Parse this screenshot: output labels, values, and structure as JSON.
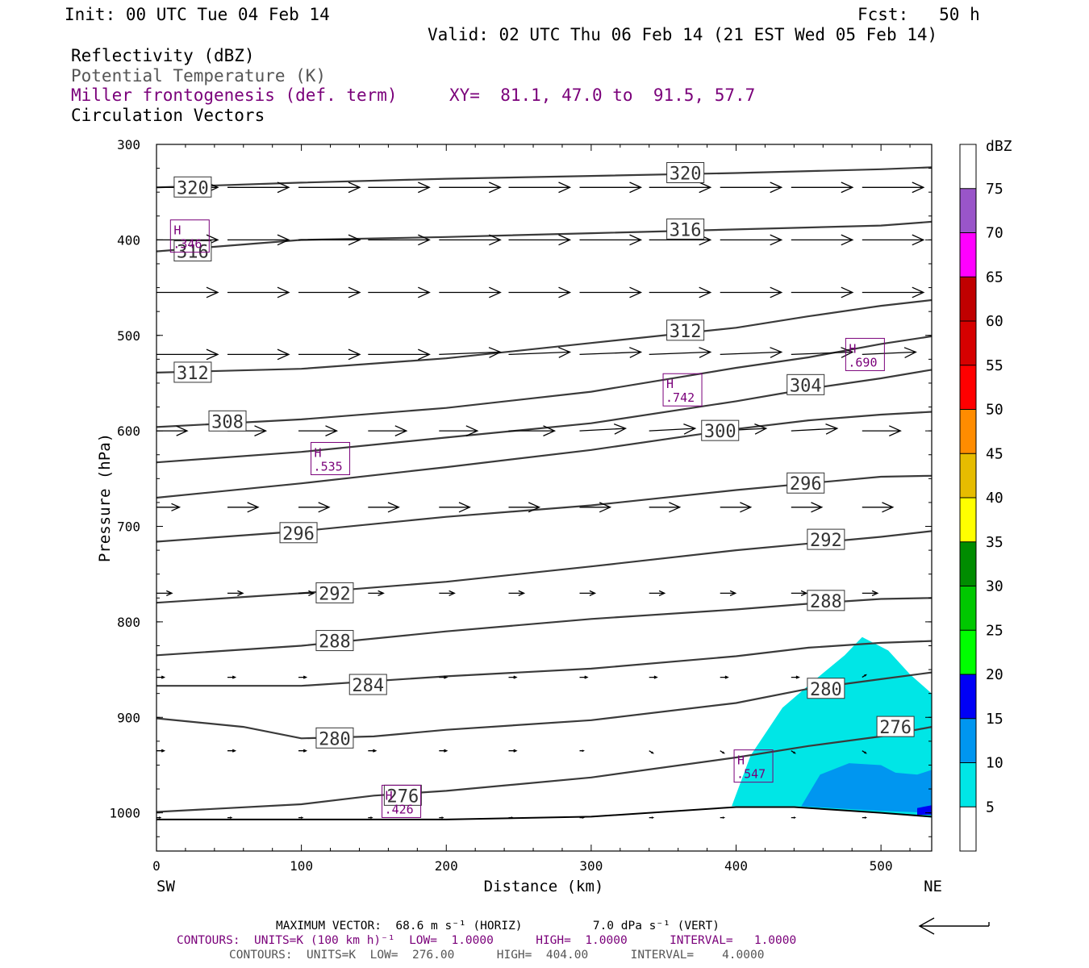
{
  "header": {
    "init": "Init: 00 UTC Tue 04 Feb 14",
    "fcst": "Fcst:   50 h",
    "valid": "Valid: 02 UTC Thu 06 Feb 14 (21 EST Wed 05 Feb 14)",
    "field1": "Reflectivity (dBZ)",
    "field2": "Potential Temperature (K)",
    "field3": "Miller frontogenesis (def. term)",
    "xy": "XY=  81.1, 47.0 to  91.5, 57.7",
    "field4": "Circulation Vectors"
  },
  "footer": {
    "max_vector": "MAXIMUM VECTOR:  68.6 m s⁻¹ (HORIZ)          7.0 dPa s⁻¹ (VERT)",
    "contours_front": "CONTOURS:  UNITS=K (100 km h)⁻¹  LOW=  1.0000      HIGH=  1.0000      INTERVAL=   1.0000",
    "contours_theta": "CONTOURS:  UNITS=K  LOW=  276.00      HIGH=  404.00      INTERVAL=    4.0000"
  },
  "colors": {
    "theta": "#3a3a3a",
    "frontogenesis": "#7a007a",
    "dbz5": "#00e6e6",
    "dbz10": "#0096f0",
    "dbz15": "#0000f6"
  },
  "chart_data": {
    "type": "cross-section",
    "xlabel": "Distance (km)",
    "ylabel": "Pressure (hPa)",
    "x_ticks": [
      "0",
      "100",
      "200",
      "300",
      "400",
      "500"
    ],
    "y_ticks": [
      "300",
      "400",
      "500",
      "600",
      "700",
      "800",
      "900",
      "1000"
    ],
    "xlim": [
      0,
      535
    ],
    "ylim": [
      1040,
      300
    ],
    "left_end": "SW",
    "right_end": "NE",
    "theta_contours": [
      {
        "label": "320",
        "points": [
          [
            0,
            345
          ],
          [
            100,
            340
          ],
          [
            200,
            336
          ],
          [
            300,
            333
          ],
          [
            400,
            330
          ],
          [
            500,
            326
          ],
          [
            535,
            324
          ]
        ]
      },
      {
        "label": "316",
        "points": [
          [
            0,
            412
          ],
          [
            100,
            400
          ],
          [
            200,
            397
          ],
          [
            300,
            393
          ],
          [
            400,
            389
          ],
          [
            500,
            385
          ],
          [
            535,
            381
          ]
        ]
      },
      {
        "label": "312",
        "points": [
          [
            0,
            539
          ],
          [
            100,
            535
          ],
          [
            200,
            524
          ],
          [
            300,
            508
          ],
          [
            400,
            492
          ],
          [
            450,
            480
          ],
          [
            500,
            469
          ],
          [
            535,
            463
          ]
        ]
      },
      {
        "label": "308",
        "points": [
          [
            0,
            596
          ],
          [
            100,
            588
          ],
          [
            200,
            576
          ],
          [
            300,
            559
          ],
          [
            400,
            534
          ],
          [
            450,
            523
          ],
          [
            500,
            509
          ],
          [
            535,
            501
          ]
        ]
      },
      {
        "label": "304",
        "points": [
          [
            0,
            633
          ],
          [
            100,
            622
          ],
          [
            200,
            607
          ],
          [
            300,
            592
          ],
          [
            400,
            569
          ],
          [
            450,
            556
          ],
          [
            500,
            545
          ],
          [
            535,
            536
          ]
        ]
      },
      {
        "label": "300",
        "points": [
          [
            0,
            670
          ],
          [
            100,
            655
          ],
          [
            200,
            638
          ],
          [
            300,
            620
          ],
          [
            400,
            598
          ],
          [
            450,
            589
          ],
          [
            500,
            583
          ],
          [
            535,
            580
          ]
        ]
      },
      {
        "label": "296",
        "points": [
          [
            0,
            716
          ],
          [
            100,
            705
          ],
          [
            200,
            690
          ],
          [
            300,
            678
          ],
          [
            400,
            662
          ],
          [
            450,
            655
          ],
          [
            500,
            648
          ],
          [
            535,
            647
          ]
        ]
      },
      {
        "label": "292",
        "points": [
          [
            0,
            780
          ],
          [
            100,
            770
          ],
          [
            200,
            758
          ],
          [
            300,
            742
          ],
          [
            400,
            725
          ],
          [
            450,
            718
          ],
          [
            500,
            711
          ],
          [
            535,
            705
          ]
        ]
      },
      {
        "label": "288",
        "points": [
          [
            0,
            835
          ],
          [
            100,
            825
          ],
          [
            200,
            810
          ],
          [
            300,
            797
          ],
          [
            400,
            787
          ],
          [
            450,
            781
          ],
          [
            500,
            776
          ],
          [
            535,
            775
          ]
        ]
      },
      {
        "label": "284",
        "points": [
          [
            0,
            867
          ],
          [
            100,
            867
          ],
          [
            200,
            857
          ],
          [
            300,
            849
          ],
          [
            400,
            836
          ],
          [
            450,
            827
          ],
          [
            500,
            822
          ],
          [
            535,
            820
          ]
        ]
      },
      {
        "label": "280",
        "points": [
          [
            0,
            901
          ],
          [
            60,
            910
          ],
          [
            100,
            922
          ],
          [
            150,
            920
          ],
          [
            200,
            913
          ],
          [
            300,
            903
          ],
          [
            400,
            885
          ],
          [
            450,
            870
          ],
          [
            500,
            860
          ],
          [
            535,
            853
          ]
        ]
      },
      {
        "label": "276",
        "points": [
          [
            0,
            999
          ],
          [
            100,
            991
          ],
          [
            150,
            982
          ],
          [
            200,
            977
          ],
          [
            300,
            963
          ],
          [
            400,
            942
          ],
          [
            450,
            930
          ],
          [
            500,
            920
          ],
          [
            535,
            910
          ]
        ]
      }
    ],
    "theta_labels": [
      {
        "text": "320",
        "x": 25,
        "p": 345
      },
      {
        "text": "320",
        "x": 365,
        "p": 330
      },
      {
        "text": "316",
        "x": 25,
        "p": 412
      },
      {
        "text": "316",
        "x": 365,
        "p": 389
      },
      {
        "text": "312",
        "x": 25,
        "p": 539
      },
      {
        "text": "312",
        "x": 365,
        "p": 495
      },
      {
        "text": "308",
        "x": 49,
        "p": 590
      },
      {
        "text": "304",
        "x": 448,
        "p": 552
      },
      {
        "text": "300",
        "x": 389,
        "p": 600
      },
      {
        "text": "296",
        "x": 98,
        "p": 707
      },
      {
        "text": "296",
        "x": 448,
        "p": 655
      },
      {
        "text": "292",
        "x": 123,
        "p": 770
      },
      {
        "text": "292",
        "x": 462,
        "p": 714
      },
      {
        "text": "288",
        "x": 123,
        "p": 820
      },
      {
        "text": "288",
        "x": 462,
        "p": 778
      },
      {
        "text": "284",
        "x": 146,
        "p": 866
      },
      {
        "text": "280",
        "x": 123,
        "p": 922
      },
      {
        "text": "280",
        "x": 462,
        "p": 870
      },
      {
        "text": "276",
        "x": 170,
        "p": 982
      },
      {
        "text": "276",
        "x": 510,
        "p": 910
      }
    ],
    "surface": [
      [
        0,
        1007
      ],
      [
        100,
        1007
      ],
      [
        200,
        1007
      ],
      [
        300,
        1004
      ],
      [
        400,
        994
      ],
      [
        440,
        994
      ],
      [
        500,
        1000
      ],
      [
        535,
        1004
      ]
    ],
    "frontogenesis_maxima": [
      {
        "label": "H",
        "value": ".346",
        "x": 23,
        "p": 396
      },
      {
        "label": "H",
        "value": ".690",
        "x": 489,
        "p": 520
      },
      {
        "label": "H",
        "value": ".742",
        "x": 363,
        "p": 557
      },
      {
        "label": "H",
        "value": ".535",
        "x": 120,
        "p": 629
      },
      {
        "label": "H",
        "value": ".547",
        "x": 412,
        "p": 951
      },
      {
        "label": "H",
        "value": ".426",
        "x": 169,
        "p": 988
      }
    ],
    "reflectivity_regions": [
      {
        "dbz": 5,
        "points": [
          [
            397,
            993
          ],
          [
            410,
            940
          ],
          [
            432,
            890
          ],
          [
            455,
            860
          ],
          [
            475,
            835
          ],
          [
            487,
            816
          ],
          [
            505,
            830
          ],
          [
            520,
            855
          ],
          [
            535,
            875
          ],
          [
            535,
            1005
          ],
          [
            500,
            1000
          ],
          [
            440,
            993
          ],
          [
            397,
            993
          ]
        ]
      },
      {
        "dbz": 10,
        "points": [
          [
            445,
            993
          ],
          [
            458,
            960
          ],
          [
            478,
            948
          ],
          [
            500,
            950
          ],
          [
            510,
            958
          ],
          [
            525,
            960
          ],
          [
            535,
            955
          ],
          [
            535,
            1000
          ],
          [
            500,
            998
          ],
          [
            445,
            993
          ]
        ]
      },
      {
        "dbz": 15,
        "points": [
          [
            525,
            995
          ],
          [
            535,
            992
          ],
          [
            535,
            1002
          ],
          [
            525,
            1002
          ]
        ]
      }
    ],
    "vectors": [
      {
        "p": 345,
        "x": [
          0,
          49,
          98,
          146,
          195,
          243,
          292,
          340,
          389,
          438,
          487,
          535
        ],
        "u": [
          8,
          8,
          8,
          8,
          8,
          8,
          8,
          8,
          8,
          8,
          8,
          8
        ],
        "w": [
          0,
          0,
          0,
          0,
          0,
          0,
          0,
          0,
          0,
          0,
          0,
          0
        ]
      },
      {
        "p": 400,
        "x": [
          0,
          49,
          98,
          146,
          195,
          243,
          292,
          340,
          389,
          438,
          487,
          535
        ],
        "u": [
          8,
          8,
          8,
          8,
          8,
          8,
          8,
          8,
          8,
          8,
          8,
          8
        ],
        "w": [
          0,
          0,
          0,
          0,
          0,
          0,
          0,
          0,
          0,
          0,
          0,
          0
        ]
      },
      {
        "p": 455,
        "x": [
          0,
          49,
          98,
          146,
          195,
          243,
          292,
          340,
          389,
          438,
          487,
          535
        ],
        "u": [
          8,
          8,
          8,
          8,
          8,
          8,
          8,
          8,
          8,
          8,
          8,
          8
        ],
        "w": [
          0,
          0,
          0,
          0,
          0,
          0,
          0,
          0,
          0,
          0,
          0,
          0
        ]
      },
      {
        "p": 520,
        "x": [
          0,
          49,
          98,
          146,
          195,
          243,
          292,
          340,
          389,
          438,
          487
        ],
        "u": [
          8,
          8,
          8,
          8,
          8,
          8,
          8,
          8,
          8,
          8,
          7
        ],
        "w": [
          0,
          0,
          0,
          0,
          1,
          1,
          1,
          1,
          1,
          1,
          1
        ]
      },
      {
        "p": 600,
        "x": [
          0,
          49,
          98,
          146,
          195,
          243,
          292,
          340,
          389,
          438,
          487
        ],
        "u": [
          4,
          5,
          5,
          5,
          5,
          6,
          6,
          6,
          6,
          6,
          5
        ],
        "w": [
          0,
          0,
          0,
          0,
          0,
          0,
          1,
          1,
          1,
          1,
          0
        ]
      },
      {
        "p": 680,
        "x": [
          0,
          49,
          98,
          146,
          195,
          243,
          292,
          340,
          389,
          438,
          487
        ],
        "u": [
          3,
          4,
          4,
          4,
          4,
          4,
          4,
          4,
          4,
          4,
          4
        ],
        "w": [
          0,
          0,
          0,
          0,
          0,
          0,
          0,
          0,
          0,
          0,
          0
        ]
      },
      {
        "p": 770,
        "x": [
          0,
          49,
          98,
          146,
          195,
          243,
          292,
          340,
          389,
          438,
          487
        ],
        "u": [
          2,
          2,
          2,
          2,
          2,
          2,
          2,
          2,
          2,
          2,
          2
        ],
        "w": [
          0,
          0,
          0,
          0,
          0,
          0,
          0,
          0,
          0,
          0,
          0
        ]
      },
      {
        "p": 858,
        "x": [
          0,
          49,
          98,
          146,
          195,
          243,
          292,
          340,
          389,
          438,
          487
        ],
        "u": [
          1,
          1,
          1,
          1,
          1,
          1,
          1,
          1,
          1,
          1,
          0.5
        ],
        "w": [
          0,
          0,
          0,
          0,
          0,
          0,
          0,
          0,
          0,
          0,
          1
        ]
      },
      {
        "p": 935,
        "x": [
          0,
          49,
          98,
          146,
          195,
          243,
          292,
          340,
          389,
          438,
          487,
          535
        ],
        "u": [
          1,
          1,
          1,
          1,
          1,
          1,
          0.5,
          0.5,
          0.5,
          0.5,
          0.5,
          1
        ],
        "w": [
          0,
          0,
          0,
          0,
          0,
          0,
          0,
          -1,
          -1,
          -1,
          -1,
          -1
        ]
      },
      {
        "p": 1005,
        "x": [
          0,
          49,
          98,
          146,
          195,
          243,
          292,
          340,
          389,
          438,
          487
        ],
        "u": [
          0.5,
          0.5,
          0.5,
          0.5,
          0.5,
          0.5,
          0.5,
          0.5,
          0.5,
          0.5,
          0.5
        ],
        "w": [
          0,
          0,
          0,
          0,
          0,
          0,
          0,
          0,
          0,
          0,
          0
        ]
      }
    ],
    "colorbar": {
      "unit": "dBZ",
      "levels": [
        "5",
        "10",
        "15",
        "20",
        "25",
        "30",
        "35",
        "40",
        "45",
        "50",
        "55",
        "60",
        "65",
        "70",
        "75"
      ],
      "colors": [
        "#ffffff",
        "#00e6e6",
        "#0096f0",
        "#0000f6",
        "#00ff00",
        "#00c800",
        "#008c00",
        "#ffff00",
        "#e6bc00",
        "#ff8c00",
        "#ff0000",
        "#d60000",
        "#c00000",
        "#ff00ff",
        "#9955c9",
        "#ffffff"
      ]
    }
  }
}
